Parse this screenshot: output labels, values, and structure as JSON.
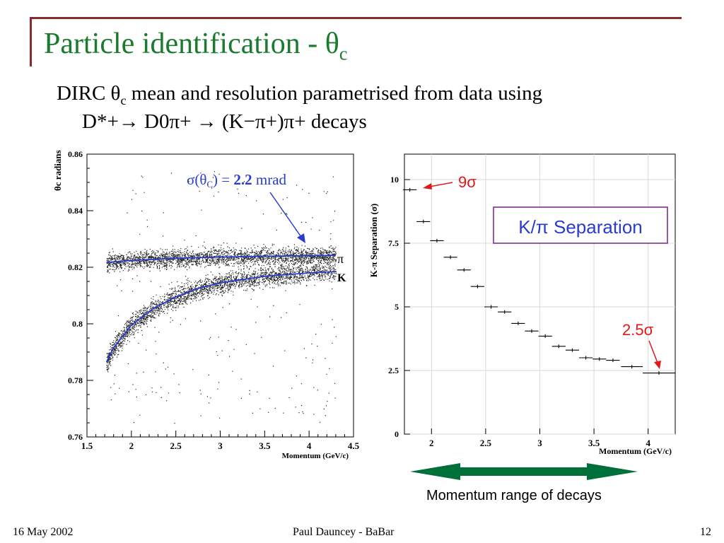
{
  "slide": {
    "title": "Particle identification - θ",
    "title_sub": "c",
    "line1_a": "DIRC θ",
    "line1_sub": "c",
    "line1_b": " mean and resolution parametrised from data using",
    "line2": "D*+→ D0π+ → (K−π+)π+ decays"
  },
  "footer": {
    "date": "16 May 2002",
    "author": "Paul Dauncey - BaBar",
    "page": "12"
  },
  "colors": {
    "title": "#1a7a2e",
    "frame": "#8a2a2a",
    "fit": "#2a3ccf",
    "annot_red": "#e01818",
    "arrow_green": "#00703a",
    "box_border": "#7a1f8a"
  },
  "chart_data": [
    {
      "type": "scatter",
      "xlabel": "Momentum (GeV/c)",
      "ylabel": "θc radians",
      "xlim": [
        1.5,
        4.5
      ],
      "ylim": [
        0.76,
        0.86
      ],
      "xticks": [
        "1.5",
        "2",
        "2.5",
        "3",
        "3.5",
        "4",
        "4.5"
      ],
      "yticks": [
        "0.76",
        "0.78",
        "0.8",
        "0.82",
        "0.84",
        "0.86"
      ],
      "annotation": "σ(θC) = 2.2 mrad",
      "annotation_parts": [
        "σ(θ",
        "C",
        ") = ",
        "2.2",
        " mrad"
      ],
      "series": [
        {
          "name": "π",
          "x": [
            1.72,
            2.0,
            2.5,
            3.0,
            3.5,
            4.0,
            4.3
          ],
          "y": [
            0.8217,
            0.8224,
            0.8232,
            0.8236,
            0.8239,
            0.8241,
            0.8242
          ]
        },
        {
          "name": "K",
          "x": [
            1.72,
            1.8,
            2.0,
            2.25,
            2.5,
            2.75,
            3.0,
            3.5,
            4.0,
            4.3
          ],
          "y": [
            0.7865,
            0.7915,
            0.7995,
            0.8055,
            0.8095,
            0.8125,
            0.8145,
            0.8168,
            0.818,
            0.8185
          ]
        }
      ]
    },
    {
      "type": "scatter",
      "xlabel": "Momentum (GeV/c)",
      "ylabel": "K-π Separation (σ)",
      "xlim": [
        1.75,
        4.25
      ],
      "ylim": [
        0,
        11
      ],
      "xticks": [
        "2",
        "2.5",
        "3",
        "3.5",
        "4"
      ],
      "yticks": [
        "0",
        "2.5",
        "5",
        "7.5",
        "10"
      ],
      "x": [
        1.8,
        1.925,
        2.05,
        2.175,
        2.3,
        2.425,
        2.55,
        2.675,
        2.8,
        2.925,
        3.05,
        3.175,
        3.3,
        3.425,
        3.55,
        3.675,
        3.85,
        4.1
      ],
      "values": [
        9.6,
        8.35,
        7.6,
        6.95,
        6.45,
        5.8,
        5.0,
        4.8,
        4.35,
        4.05,
        3.85,
        3.45,
        3.3,
        3.0,
        2.95,
        2.9,
        2.65,
        2.4
      ],
      "xerr": [
        0.0625,
        0.0625,
        0.0625,
        0.0625,
        0.0625,
        0.0625,
        0.0625,
        0.0625,
        0.0625,
        0.0625,
        0.0625,
        0.0625,
        0.0625,
        0.0625,
        0.0625,
        0.0625,
        0.1,
        0.15
      ],
      "annotations": [
        "9σ",
        "2.5σ"
      ],
      "boxed_label": "K/π Separation",
      "range_label": "Momentum range of decays"
    }
  ]
}
